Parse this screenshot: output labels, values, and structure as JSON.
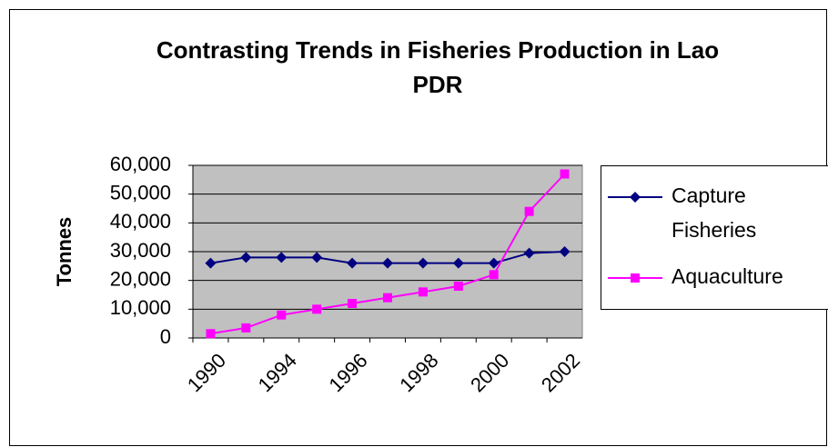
{
  "chart_data": {
    "type": "line",
    "title": "Contrasting Trends in Fisheries Production in Lao PDR",
    "y_label": "Tonnes",
    "categories": [
      "1990",
      null,
      "1994",
      null,
      "1996",
      null,
      "1998",
      null,
      "2000",
      null,
      "2002"
    ],
    "series": [
      {
        "name": "Capture Fisheries",
        "color": "#000080",
        "marker": "diamond",
        "values": [
          26000,
          28000,
          28000,
          28000,
          26000,
          26000,
          26000,
          26000,
          26000,
          29500,
          30000
        ]
      },
      {
        "name": "Aquaculture",
        "color": "#ff00ff",
        "marker": "square",
        "values": [
          1500,
          3500,
          8000,
          10000,
          12000,
          14000,
          16000,
          18000,
          22000,
          44000,
          57000
        ]
      }
    ],
    "ylim": [
      0,
      60000
    ],
    "yticks": [
      0,
      {
        "value": 10000,
        "label": "10,000"
      },
      {
        "value": 20000,
        "label": "20,000"
      },
      {
        "value": 30000,
        "label": "30,000"
      },
      {
        "value": 40000,
        "label": "40,000"
      },
      {
        "value": 50000,
        "label": "50,000"
      },
      {
        "value": 60000,
        "label": "60,000"
      }
    ],
    "grid": true,
    "legend": "right"
  }
}
